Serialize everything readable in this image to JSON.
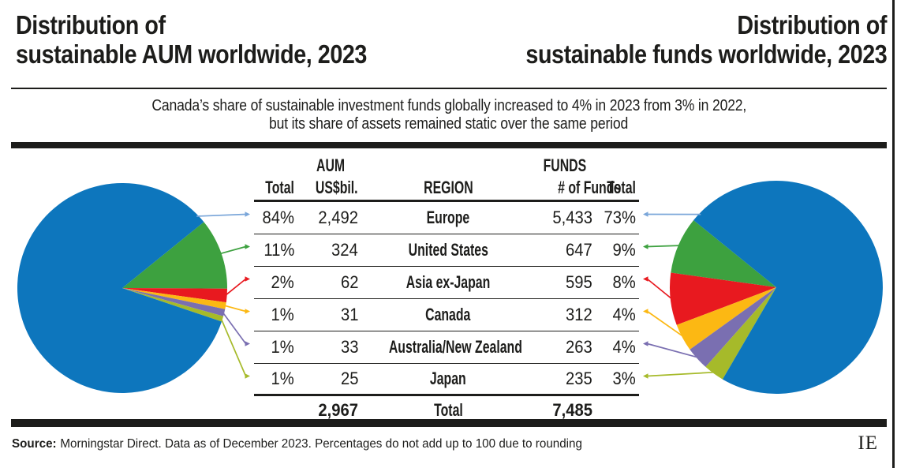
{
  "page": {
    "title_left_line1": "Distribution of",
    "title_left_line2": "sustainable AUM worldwide, 2023",
    "title_right_line1": "Distribution of",
    "title_right_line2": "sustainable funds worldwide, 2023",
    "subtitle_line1": "Canada’s share of sustainable investment funds globally increased to 4% in 2023 from 3% in 2022,",
    "subtitle_line2": "but its share of assets remained static over the same period"
  },
  "table": {
    "group_aum": "AUM",
    "group_funds": "FUNDS",
    "h_total_left": "Total",
    "h_aum": "US$bil.",
    "h_region": "REGION",
    "h_funds": "# of Funds",
    "h_total_right": "Total",
    "rows": [
      {
        "aum_pct": "84%",
        "aum": "2,492",
        "region": "Europe",
        "funds": "5,433",
        "funds_pct": "73%"
      },
      {
        "aum_pct": "11%",
        "aum": "324",
        "region": "United States",
        "funds": "647",
        "funds_pct": "9%"
      },
      {
        "aum_pct": "2%",
        "aum": "62",
        "region": "Asia ex-Japan",
        "funds": "595",
        "funds_pct": "8%"
      },
      {
        "aum_pct": "1%",
        "aum": "31",
        "region": "Canada",
        "funds": "312",
        "funds_pct": "4%"
      },
      {
        "aum_pct": "1%",
        "aum": "33",
        "region": "Australia/New Zealand",
        "funds": "263",
        "funds_pct": "4%"
      },
      {
        "aum_pct": "1%",
        "aum": "25",
        "region": "Japan",
        "funds": "235",
        "funds_pct": "3%"
      }
    ],
    "total": {
      "aum": "2,967",
      "label": "Total",
      "funds": "7,485"
    }
  },
  "footer": {
    "source_label": "Source:",
    "source_text": "Morningstar Direct. Data as of December 2023. Percentages do not add up to 100 due to rounding",
    "logo": "IE"
  },
  "chart_data": [
    {
      "type": "pie",
      "position": "left",
      "title": "Distribution of sustainable AUM worldwide, 2023",
      "value_label": "AUM US$bil.",
      "categories": [
        "Europe",
        "United States",
        "Asia ex-Japan",
        "Canada",
        "Australia/New Zealand",
        "Japan"
      ],
      "values": [
        2492,
        324,
        62,
        31,
        33,
        25
      ],
      "percent_labels": [
        "84%",
        "11%",
        "2%",
        "1%",
        "1%",
        "1%"
      ],
      "total": 2967,
      "colors": [
        "#0d76bd",
        "#3da13f",
        "#e8191f",
        "#fcb813",
        "#7a6fb1",
        "#a6ba2a"
      ],
      "leader_line_colors": [
        "#7aa6d9",
        "#3da13f",
        "#e8191f",
        "#fcb813",
        "#7a6fb1",
        "#a6ba2a"
      ],
      "legend": "off",
      "labels_shown_in_table": true
    },
    {
      "type": "pie",
      "position": "right",
      "title": "Distribution of sustainable funds worldwide, 2023",
      "value_label": "# of Funds",
      "categories": [
        "Europe",
        "United States",
        "Asia ex-Japan",
        "Canada",
        "Australia/New Zealand",
        "Japan"
      ],
      "values": [
        5433,
        647,
        595,
        312,
        263,
        235
      ],
      "percent_labels": [
        "73%",
        "9%",
        "8%",
        "4%",
        "4%",
        "3%"
      ],
      "total": 7485,
      "colors": [
        "#0d76bd",
        "#3da13f",
        "#e8191f",
        "#fcb813",
        "#7a6fb1",
        "#a6ba2a"
      ],
      "leader_line_colors": [
        "#7aa6d9",
        "#3da13f",
        "#e8191f",
        "#fcb813",
        "#7a6fb1",
        "#a6ba2a"
      ],
      "legend": "off",
      "labels_shown_in_table": true
    }
  ]
}
